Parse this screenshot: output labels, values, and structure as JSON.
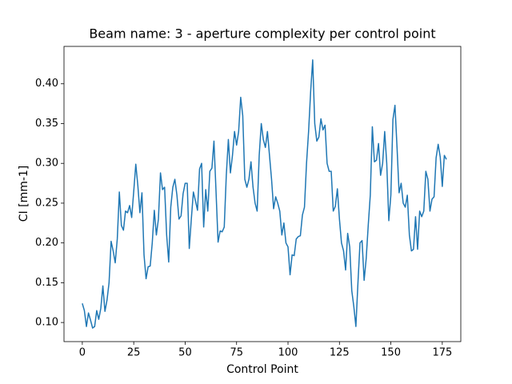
{
  "chart_data": {
    "type": "line",
    "title": "Beam name: 3  - aperture complexity per control point",
    "xlabel": "Control Point",
    "ylabel": "CI [mm-1]",
    "color": "#1f77b4",
    "x": [
      0,
      1,
      2,
      3,
      4,
      5,
      6,
      7,
      8,
      9,
      10,
      11,
      12,
      13,
      14,
      15,
      16,
      17,
      18,
      19,
      20,
      21,
      22,
      23,
      24,
      25,
      26,
      27,
      28,
      29,
      30,
      31,
      32,
      33,
      34,
      35,
      36,
      37,
      38,
      39,
      40,
      41,
      42,
      43,
      44,
      45,
      46,
      47,
      48,
      49,
      50,
      51,
      52,
      53,
      54,
      55,
      56,
      57,
      58,
      59,
      60,
      61,
      62,
      63,
      64,
      65,
      66,
      67,
      68,
      69,
      70,
      71,
      72,
      73,
      74,
      75,
      76,
      77,
      78,
      79,
      80,
      81,
      82,
      83,
      84,
      85,
      86,
      87,
      88,
      89,
      90,
      91,
      92,
      93,
      94,
      95,
      96,
      97,
      98,
      99,
      100,
      101,
      102,
      103,
      104,
      105,
      106,
      107,
      108,
      109,
      110,
      111,
      112,
      113,
      114,
      115,
      116,
      117,
      118,
      119,
      120,
      121,
      122,
      123,
      124,
      125,
      126,
      127,
      128,
      129,
      130,
      131,
      132,
      133,
      134,
      135,
      136,
      137,
      138,
      139,
      140,
      141,
      142,
      143,
      144,
      145,
      146,
      147,
      148,
      149,
      150,
      151,
      152,
      153,
      154,
      155,
      156,
      157,
      158,
      159,
      160,
      161,
      162,
      163,
      164,
      165,
      166,
      167,
      168,
      169,
      170,
      171,
      172,
      173,
      174,
      175,
      176,
      177
    ],
    "values": [
      0.124,
      0.115,
      0.095,
      0.112,
      0.103,
      0.093,
      0.095,
      0.115,
      0.104,
      0.118,
      0.146,
      0.114,
      0.128,
      0.15,
      0.202,
      0.19,
      0.175,
      0.205,
      0.264,
      0.222,
      0.216,
      0.24,
      0.238,
      0.247,
      0.232,
      0.265,
      0.299,
      0.272,
      0.238,
      0.263,
      0.185,
      0.155,
      0.17,
      0.171,
      0.2,
      0.241,
      0.21,
      0.23,
      0.288,
      0.267,
      0.27,
      0.21,
      0.176,
      0.245,
      0.27,
      0.28,
      0.26,
      0.23,
      0.234,
      0.262,
      0.275,
      0.275,
      0.193,
      0.23,
      0.264,
      0.253,
      0.241,
      0.293,
      0.3,
      0.22,
      0.267,
      0.24,
      0.29,
      0.294,
      0.328,
      0.265,
      0.201,
      0.215,
      0.214,
      0.22,
      0.285,
      0.33,
      0.288,
      0.31,
      0.34,
      0.323,
      0.34,
      0.383,
      0.36,
      0.28,
      0.27,
      0.28,
      0.302,
      0.27,
      0.25,
      0.24,
      0.31,
      0.35,
      0.33,
      0.32,
      0.34,
      0.31,
      0.28,
      0.243,
      0.258,
      0.25,
      0.24,
      0.21,
      0.225,
      0.2,
      0.195,
      0.16,
      0.185,
      0.184,
      0.205,
      0.208,
      0.209,
      0.235,
      0.245,
      0.3,
      0.34,
      0.39,
      0.43,
      0.35,
      0.328,
      0.333,
      0.356,
      0.342,
      0.348,
      0.3,
      0.29,
      0.29,
      0.24,
      0.246,
      0.268,
      0.23,
      0.2,
      0.19,
      0.166,
      0.212,
      0.195,
      0.14,
      0.12,
      0.095,
      0.15,
      0.2,
      0.203,
      0.153,
      0.18,
      0.222,
      0.26,
      0.346,
      0.302,
      0.304,
      0.325,
      0.285,
      0.3,
      0.34,
      0.3,
      0.228,
      0.26,
      0.355,
      0.373,
      0.32,
      0.263,
      0.275,
      0.25,
      0.245,
      0.26,
      0.21,
      0.19,
      0.192,
      0.233,
      0.192,
      0.24,
      0.233,
      0.24,
      0.29,
      0.28,
      0.24,
      0.255,
      0.258,
      0.307,
      0.324,
      0.308,
      0.271,
      0.31,
      0.305
    ],
    "xlim": [
      -8.9,
      184
    ],
    "ylim": [
      0.076,
      0.447
    ],
    "xticks": [
      0,
      25,
      50,
      75,
      100,
      125,
      150,
      175
    ],
    "yticks": [
      {
        "value": 0.1,
        "label": "0.10"
      },
      0.15,
      {
        "value": 0.2,
        "label": "0.20"
      },
      0.25,
      {
        "value": 0.3,
        "label": "0.30"
      },
      0.35,
      {
        "value": 0.4,
        "label": "0.40"
      }
    ]
  }
}
